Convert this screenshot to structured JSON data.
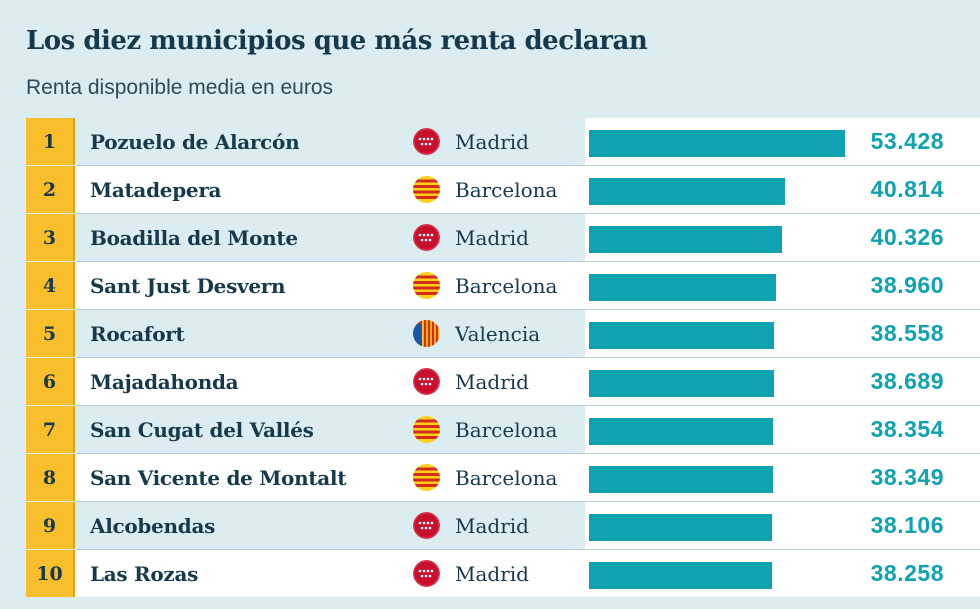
{
  "title": "Los diez municipios que más renta declaran",
  "subtitle": "Renta disponible media en euros",
  "colors": {
    "bar": "#0fa3b1",
    "rank_bg": "#f9be2c",
    "text": "#163a4c",
    "background": "#dcedf1"
  },
  "chart_data": {
    "type": "bar",
    "orientation": "horizontal",
    "title": "Los diez municipios que más renta declaran",
    "subtitle": "Renta disponible media en euros",
    "categories": [
      "Pozuelo de Alarcón",
      "Matadepera",
      "Boadilla del Monte",
      "Sant Just Desvern",
      "Rocafort",
      "Majadahonda",
      "San Cugat del Vallés",
      "San Vicente de Montalt",
      "Alcobendas",
      "Las Rozas"
    ],
    "values": [
      53428,
      40814,
      40326,
      38960,
      38558,
      38689,
      38354,
      38349,
      38106,
      38258
    ],
    "xlim": [
      0,
      53428
    ]
  },
  "rows": [
    {
      "rank": "1",
      "name": "Pozuelo de Alarcón",
      "province": "Madrid",
      "flag": "madrid-flag-icon",
      "value": 53428,
      "value_label": "53.428"
    },
    {
      "rank": "2",
      "name": "Matadepera",
      "province": "Barcelona",
      "flag": "catalonia-flag-icon",
      "value": 40814,
      "value_label": "40.814"
    },
    {
      "rank": "3",
      "name": "Boadilla del Monte",
      "province": "Madrid",
      "flag": "madrid-flag-icon",
      "value": 40326,
      "value_label": "40.326"
    },
    {
      "rank": "4",
      "name": "Sant Just Desvern",
      "province": "Barcelona",
      "flag": "catalonia-flag-icon",
      "value": 38960,
      "value_label": "38.960"
    },
    {
      "rank": "5",
      "name": "Rocafort",
      "province": "Valencia",
      "flag": "valencia-flag-icon",
      "value": 38558,
      "value_label": "38.558"
    },
    {
      "rank": "6",
      "name": "Majadahonda",
      "province": "Madrid",
      "flag": "madrid-flag-icon",
      "value": 38689,
      "value_label": "38.689"
    },
    {
      "rank": "7",
      "name": "San Cugat del Vallés",
      "province": "Barcelona",
      "flag": "catalonia-flag-icon",
      "value": 38354,
      "value_label": "38.354"
    },
    {
      "rank": "8",
      "name": "San Vicente de Montalt",
      "province": "Barcelona",
      "flag": "catalonia-flag-icon",
      "value": 38349,
      "value_label": "38.349"
    },
    {
      "rank": "9",
      "name": "Alcobendas",
      "province": "Madrid",
      "flag": "madrid-flag-icon",
      "value": 38106,
      "value_label": "38.106"
    },
    {
      "rank": "10",
      "name": "Las Rozas",
      "province": "Madrid",
      "flag": "madrid-flag-icon",
      "value": 38258,
      "value_label": "38.258"
    }
  ]
}
